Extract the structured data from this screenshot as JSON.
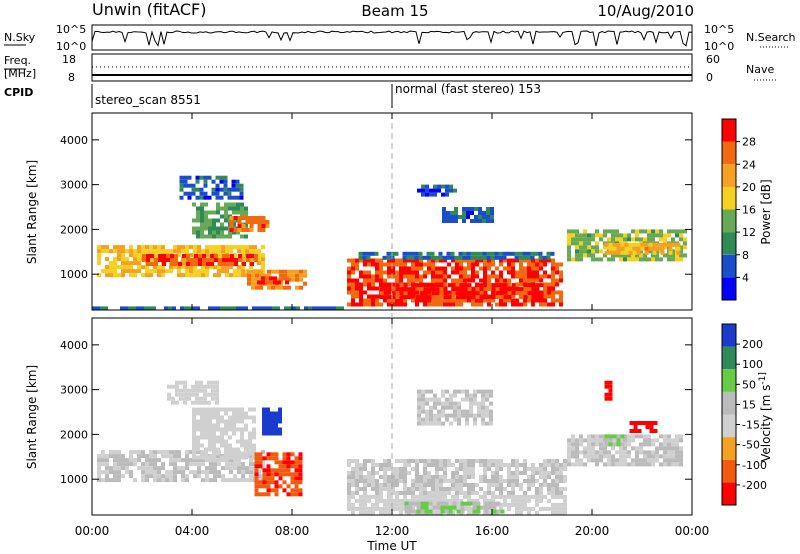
{
  "header": {
    "station": "Unwin (fitACF)",
    "beam": "Beam 15",
    "date": "10/Aug/2010"
  },
  "top_panels": {
    "nsky_label": "N.Sky",
    "nsky_ticks": [
      "10^5",
      "10^0"
    ],
    "nsearch_label": "N.Search",
    "nsearch_ticks": [
      "10^5",
      "10^0"
    ],
    "freq_label_1": "Freq.",
    "freq_label_2": "[MHz]",
    "freq_ticks": [
      "18",
      "8"
    ],
    "nave_label": "Nave",
    "nave_ticks": [
      "60",
      "0"
    ],
    "cpid_label": "CPID",
    "cpid_segments": [
      {
        "name": "stereo_scan 8551",
        "start_hour": 0
      },
      {
        "name": "normal (fast stereo) 153",
        "start_hour": 12
      }
    ]
  },
  "chart_data": [
    {
      "type": "heatmap",
      "title": "Power",
      "xlabel": "Time UT",
      "ylabel": "Slant Range [km]",
      "xlim": [
        0,
        24
      ],
      "ylim": [
        200,
        4600
      ],
      "x_ticks": [
        "00:00",
        "04:00",
        "08:00",
        "12:00",
        "16:00",
        "20:00",
        "00:00"
      ],
      "y_ticks": [
        "1000",
        "2000",
        "3000",
        "4000"
      ],
      "colorbar": {
        "label": "Power [dB]",
        "ticks": [
          "28",
          "24",
          "20",
          "16",
          "12",
          "8",
          "4"
        ],
        "range": [
          0,
          30
        ]
      },
      "regions": [
        {
          "t0": 0.2,
          "t1": 6.8,
          "r0": 1000,
          "r1": 1650,
          "level": 18
        },
        {
          "t0": 2.0,
          "t1": 6.5,
          "r0": 1250,
          "r1": 1450,
          "level": 26
        },
        {
          "t0": 4.0,
          "t1": 6.2,
          "r0": 1800,
          "r1": 2600,
          "level": 12
        },
        {
          "t0": 5.5,
          "t1": 7.0,
          "r0": 2000,
          "r1": 2300,
          "level": 24
        },
        {
          "t0": 6.2,
          "t1": 8.6,
          "r0": 700,
          "r1": 1100,
          "level": 22
        },
        {
          "t0": 6.6,
          "t1": 7.8,
          "r0": 800,
          "r1": 950,
          "level": 27
        },
        {
          "t0": 3.5,
          "t1": 6.0,
          "r0": 2700,
          "r1": 3200,
          "level": 6
        },
        {
          "t0": 10.2,
          "t1": 18.8,
          "r0": 300,
          "r1": 1350,
          "level": 26
        },
        {
          "t0": 11.5,
          "t1": 18.0,
          "r0": 450,
          "r1": 800,
          "level": 28
        },
        {
          "t0": 10.5,
          "t1": 18.5,
          "r0": 1350,
          "r1": 1500,
          "level": 8
        },
        {
          "t0": 13.0,
          "t1": 14.5,
          "r0": 2800,
          "r1": 3000,
          "level": 6
        },
        {
          "t0": 14.0,
          "t1": 16.0,
          "r0": 2200,
          "r1": 2500,
          "level": 6
        },
        {
          "t0": 19.0,
          "t1": 23.8,
          "r0": 1350,
          "r1": 2000,
          "level": 14
        },
        {
          "t0": 20.5,
          "t1": 23.5,
          "r0": 1500,
          "r1": 1700,
          "level": 20
        },
        {
          "t0": 0.0,
          "t1": 10.0,
          "r0": 200,
          "r1": 280,
          "level": 8
        }
      ]
    },
    {
      "type": "heatmap",
      "title": "Velocity",
      "xlabel": "Time UT",
      "ylabel": "Slant Range [km]",
      "xlim": [
        0,
        24
      ],
      "ylim": [
        200,
        4600
      ],
      "x_ticks": [
        "00:00",
        "04:00",
        "08:00",
        "12:00",
        "16:00",
        "20:00",
        "00:00"
      ],
      "y_ticks": [
        "1000",
        "2000",
        "3000",
        "4000"
      ],
      "colorbar": {
        "label": "Velocity [m s^-1]",
        "ticks": [
          "200",
          "100",
          "50",
          "15",
          "-15",
          "-50",
          "-100",
          "-200"
        ],
        "range": [
          -250,
          250
        ]
      },
      "regions": [
        {
          "t0": 0.2,
          "t1": 6.8,
          "r0": 1000,
          "r1": 1650,
          "level": 0
        },
        {
          "t0": 4.0,
          "t1": 6.5,
          "r0": 1500,
          "r1": 2600,
          "level": -40
        },
        {
          "t0": 3.0,
          "t1": 5.0,
          "r0": 2700,
          "r1": 3200,
          "level": -40
        },
        {
          "t0": 6.8,
          "t1": 7.6,
          "r0": 2000,
          "r1": 2600,
          "level": 220
        },
        {
          "t0": 6.5,
          "t1": 8.4,
          "r0": 700,
          "r1": 1600,
          "level": -180
        },
        {
          "t0": 10.2,
          "t1": 19.0,
          "r0": 650,
          "r1": 1450,
          "level": 0
        },
        {
          "t0": 10.2,
          "t1": 19.0,
          "r0": 280,
          "r1": 650,
          "level": -40
        },
        {
          "t0": 12.5,
          "t1": 16.5,
          "r0": 300,
          "r1": 500,
          "level": 60
        },
        {
          "t0": 13.0,
          "t1": 16.0,
          "r0": 2200,
          "r1": 3000,
          "level": 0
        },
        {
          "t0": 19.0,
          "t1": 23.5,
          "r0": 1300,
          "r1": 2000,
          "level": 0
        },
        {
          "t0": 20.5,
          "t1": 21.3,
          "r0": 1800,
          "r1": 2000,
          "level": 60
        },
        {
          "t0": 21.5,
          "t1": 22.5,
          "r0": 2100,
          "r1": 2300,
          "level": -220
        },
        {
          "t0": 20.5,
          "t1": 20.8,
          "r0": 2800,
          "r1": 3200,
          "level": -220
        }
      ]
    }
  ],
  "colors": {
    "power_scale": [
      "#0000ff",
      "#1a4ecc",
      "#2e8b57",
      "#66aa55",
      "#f5d020",
      "#f5a020",
      "#f26a10",
      "#ff0000"
    ],
    "velocity_scale": [
      "#ff0000",
      "#f25a10",
      "#f5a020",
      "#d0d0d0",
      "#bbbbbb",
      "#66cc44",
      "#2e8b57",
      "#1a3ccc"
    ]
  }
}
